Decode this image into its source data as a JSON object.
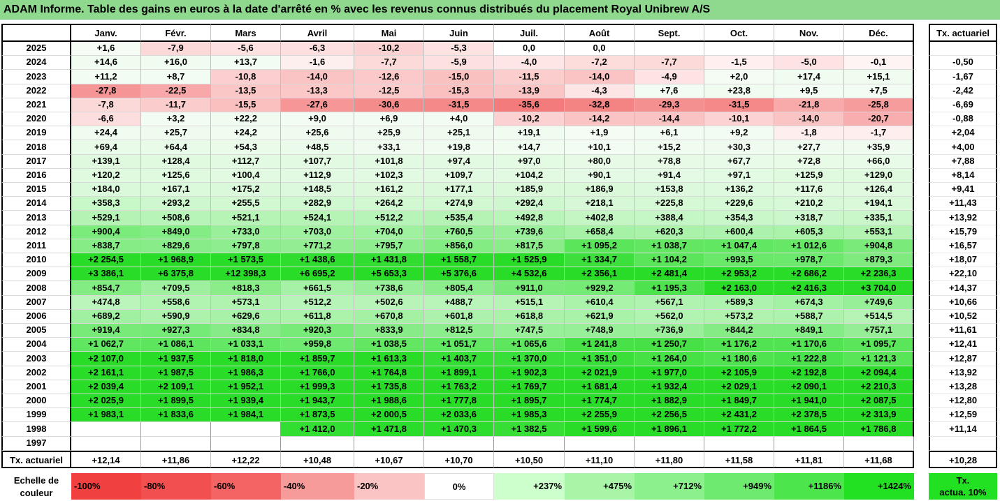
{
  "title": "ADAM Informe. Table des gains en euros à la date d'arrêté en % avec les revenus connus distribués du placement Royal Unibrew A/S",
  "months": [
    "Janv.",
    "Févr.",
    "Mars",
    "Avril",
    "Mai",
    "Juin",
    "Juil.",
    "Août",
    "Sept.",
    "Oct.",
    "Nov.",
    "Déc."
  ],
  "tx_header": "Tx. actuariel",
  "rows": [
    {
      "year": "2025",
      "values": [
        "+1,6",
        "-7,9",
        "-5,6",
        "-6,3",
        "-10,2",
        "-5,3",
        "0,0",
        "0,0",
        "",
        "",
        "",
        ""
      ],
      "tx": ""
    },
    {
      "year": "2024",
      "values": [
        "+14,6",
        "+16,0",
        "+13,7",
        "-1,6",
        "-7,7",
        "-5,9",
        "-4,0",
        "-7,2",
        "-7,7",
        "-1,5",
        "-5,0",
        "-0,1"
      ],
      "tx": "-0,50"
    },
    {
      "year": "2023",
      "values": [
        "+11,2",
        "+8,7",
        "-10,8",
        "-14,0",
        "-12,6",
        "-15,0",
        "-11,5",
        "-14,0",
        "-4,9",
        "+2,0",
        "+17,4",
        "+15,1"
      ],
      "tx": "-1,67"
    },
    {
      "year": "2022",
      "values": [
        "-27,8",
        "-22,5",
        "-13,5",
        "-13,3",
        "-12,5",
        "-15,3",
        "-13,9",
        "-4,3",
        "+7,6",
        "+23,8",
        "+9,5",
        "+7,5"
      ],
      "tx": "-2,42"
    },
    {
      "year": "2021",
      "values": [
        "-7,8",
        "-11,7",
        "-15,5",
        "-27,6",
        "-30,6",
        "-31,5",
        "-35,6",
        "-32,8",
        "-29,3",
        "-31,5",
        "-21,8",
        "-25,8"
      ],
      "tx": "-6,69"
    },
    {
      "year": "2020",
      "values": [
        "-6,6",
        "+3,2",
        "+22,2",
        "+9,0",
        "+6,9",
        "+4,0",
        "-10,2",
        "-14,2",
        "-14,4",
        "-10,1",
        "-14,0",
        "-20,7"
      ],
      "tx": "-0,88"
    },
    {
      "year": "2019",
      "values": [
        "+24,4",
        "+25,7",
        "+24,2",
        "+25,6",
        "+25,9",
        "+25,1",
        "+19,1",
        "+1,9",
        "+6,1",
        "+9,2",
        "-1,8",
        "-1,7"
      ],
      "tx": "+2,04"
    },
    {
      "year": "2018",
      "values": [
        "+69,4",
        "+64,4",
        "+54,3",
        "+48,5",
        "+33,1",
        "+19,8",
        "+14,7",
        "+10,1",
        "+15,2",
        "+30,3",
        "+27,7",
        "+35,9"
      ],
      "tx": "+4,00"
    },
    {
      "year": "2017",
      "values": [
        "+139,1",
        "+128,4",
        "+112,7",
        "+107,7",
        "+101,8",
        "+97,4",
        "+97,0",
        "+80,0",
        "+78,8",
        "+67,7",
        "+72,8",
        "+66,0"
      ],
      "tx": "+7,88"
    },
    {
      "year": "2016",
      "values": [
        "+120,2",
        "+125,6",
        "+100,4",
        "+112,9",
        "+102,3",
        "+109,7",
        "+104,2",
        "+90,1",
        "+91,4",
        "+97,1",
        "+125,9",
        "+129,0"
      ],
      "tx": "+8,14"
    },
    {
      "year": "2015",
      "values": [
        "+184,0",
        "+167,1",
        "+175,2",
        "+148,5",
        "+161,2",
        "+177,1",
        "+185,9",
        "+186,9",
        "+153,8",
        "+136,2",
        "+117,6",
        "+126,4"
      ],
      "tx": "+9,41"
    },
    {
      "year": "2014",
      "values": [
        "+358,3",
        "+293,2",
        "+255,5",
        "+282,9",
        "+264,2",
        "+274,9",
        "+292,4",
        "+218,1",
        "+225,8",
        "+229,6",
        "+210,2",
        "+194,1"
      ],
      "tx": "+11,43"
    },
    {
      "year": "2013",
      "values": [
        "+529,1",
        "+508,6",
        "+521,1",
        "+524,1",
        "+512,2",
        "+535,4",
        "+492,8",
        "+402,8",
        "+388,4",
        "+354,3",
        "+318,7",
        "+335,1"
      ],
      "tx": "+13,92"
    },
    {
      "year": "2012",
      "values": [
        "+900,4",
        "+849,0",
        "+733,0",
        "+703,0",
        "+704,0",
        "+760,5",
        "+739,6",
        "+658,4",
        "+620,3",
        "+600,4",
        "+605,3",
        "+553,1"
      ],
      "tx": "+15,79"
    },
    {
      "year": "2011",
      "values": [
        "+838,7",
        "+829,6",
        "+797,8",
        "+771,2",
        "+795,7",
        "+856,0",
        "+817,5",
        "+1 095,2",
        "+1 038,7",
        "+1 047,4",
        "+1 012,6",
        "+904,8"
      ],
      "tx": "+16,57"
    },
    {
      "year": "2010",
      "values": [
        "+2 254,5",
        "+1 968,9",
        "+1 573,5",
        "+1 438,6",
        "+1 431,8",
        "+1 558,7",
        "+1 525,9",
        "+1 334,7",
        "+1 104,2",
        "+993,5",
        "+978,7",
        "+879,3"
      ],
      "tx": "+18,07"
    },
    {
      "year": "2009",
      "values": [
        "+3 386,1",
        "+6 375,8",
        "+12 398,3",
        "+6 695,2",
        "+5 653,3",
        "+5 376,6",
        "+4 532,6",
        "+2 356,1",
        "+2 481,4",
        "+2 953,2",
        "+2 686,2",
        "+2 236,3"
      ],
      "tx": "+22,10"
    },
    {
      "year": "2008",
      "values": [
        "+854,7",
        "+709,5",
        "+818,3",
        "+661,5",
        "+738,6",
        "+805,4",
        "+911,0",
        "+929,2",
        "+1 195,3",
        "+2 163,0",
        "+2 416,3",
        "+3 704,0"
      ],
      "tx": "+14,37"
    },
    {
      "year": "2007",
      "values": [
        "+474,8",
        "+558,6",
        "+573,1",
        "+512,2",
        "+502,6",
        "+488,7",
        "+515,1",
        "+610,4",
        "+567,1",
        "+589,3",
        "+674,3",
        "+749,6"
      ],
      "tx": "+10,66"
    },
    {
      "year": "2006",
      "values": [
        "+689,2",
        "+590,9",
        "+629,6",
        "+611,8",
        "+670,8",
        "+601,8",
        "+618,8",
        "+621,9",
        "+562,0",
        "+573,2",
        "+588,7",
        "+514,5"
      ],
      "tx": "+10,52"
    },
    {
      "year": "2005",
      "values": [
        "+919,4",
        "+927,3",
        "+834,8",
        "+920,3",
        "+833,9",
        "+812,5",
        "+747,5",
        "+748,9",
        "+736,9",
        "+844,2",
        "+849,1",
        "+757,1"
      ],
      "tx": "+11,61"
    },
    {
      "year": "2004",
      "values": [
        "+1 062,7",
        "+1 086,1",
        "+1 033,1",
        "+959,8",
        "+1 038,5",
        "+1 051,7",
        "+1 065,6",
        "+1 241,8",
        "+1 250,7",
        "+1 176,2",
        "+1 170,6",
        "+1 095,7"
      ],
      "tx": "+12,41"
    },
    {
      "year": "2003",
      "values": [
        "+2 107,0",
        "+1 937,5",
        "+1 818,0",
        "+1 859,7",
        "+1 613,3",
        "+1 403,7",
        "+1 370,0",
        "+1 351,0",
        "+1 264,0",
        "+1 180,6",
        "+1 222,8",
        "+1 121,3"
      ],
      "tx": "+12,87"
    },
    {
      "year": "2002",
      "values": [
        "+2 161,1",
        "+1 987,5",
        "+1 986,3",
        "+1 766,0",
        "+1 764,8",
        "+1 899,1",
        "+1 902,3",
        "+2 021,9",
        "+1 977,0",
        "+2 105,9",
        "+2 192,8",
        "+2 094,4"
      ],
      "tx": "+13,92"
    },
    {
      "year": "2001",
      "values": [
        "+2 039,4",
        "+2 109,1",
        "+1 952,1",
        "+1 999,3",
        "+1 735,8",
        "+1 763,2",
        "+1 769,7",
        "+1 681,4",
        "+1 932,4",
        "+2 029,1",
        "+2 090,1",
        "+2 210,3"
      ],
      "tx": "+13,28"
    },
    {
      "year": "2000",
      "values": [
        "+2 025,9",
        "+1 899,5",
        "+1 939,4",
        "+1 943,7",
        "+1 988,6",
        "+1 777,8",
        "+1 895,7",
        "+1 774,7",
        "+1 882,9",
        "+1 849,7",
        "+1 941,0",
        "+2 087,5"
      ],
      "tx": "+12,80"
    },
    {
      "year": "1999",
      "values": [
        "+1 983,1",
        "+1 833,6",
        "+1 984,1",
        "+1 873,5",
        "+2 000,5",
        "+2 033,6",
        "+1 985,3",
        "+2 255,9",
        "+2 256,5",
        "+2 431,2",
        "+2 378,5",
        "+2 313,9"
      ],
      "tx": "+12,59"
    },
    {
      "year": "1998",
      "values": [
        "",
        "",
        "",
        "+1 412,0",
        "+1 471,8",
        "+1 470,3",
        "+1 382,5",
        "+1 599,6",
        "+1 896,1",
        "+1 772,2",
        "+1 864,5",
        "+1 786,8"
      ],
      "tx": "+11,14"
    },
    {
      "year": "1997",
      "values": [
        "",
        "",
        "",
        "",
        "",
        "",
        "",
        "",
        "",
        "",
        "",
        ""
      ],
      "tx": ""
    }
  ],
  "footer": {
    "label": "Tx. actuariel",
    "values": [
      "+12,14",
      "+11,86",
      "+12,22",
      "+10,48",
      "+10,67",
      "+10,70",
      "+10,50",
      "+11,10",
      "+11,80",
      "+11,58",
      "+11,81",
      "+11,68"
    ],
    "tx": "+10,28"
  },
  "legend": {
    "label_line1": "Echelle de",
    "label_line2": "couleur",
    "items": [
      {
        "text": "-100%",
        "color": "#F04040",
        "align": "left"
      },
      {
        "text": "-80%",
        "color": "#F25050",
        "align": "left"
      },
      {
        "text": "-60%",
        "color": "#F46464",
        "align": "left"
      },
      {
        "text": "-40%",
        "color": "#F79A9A",
        "align": "left"
      },
      {
        "text": "-20%",
        "color": "#FAC4C4",
        "align": "left"
      },
      {
        "text": "0%",
        "color": "#FFFFFF",
        "align": "center"
      },
      {
        "text": "+237%",
        "color": "#CCFFCC",
        "align": "right"
      },
      {
        "text": "+475%",
        "color": "#A8F5A8",
        "align": "right"
      },
      {
        "text": "+712%",
        "color": "#8CF08C",
        "align": "right"
      },
      {
        "text": "+949%",
        "color": "#6EEB6E",
        "align": "right"
      },
      {
        "text": "+1186%",
        "color": "#4CE64C",
        "align": "right"
      },
      {
        "text": "+1424%",
        "color": "#22E022",
        "align": "right"
      }
    ],
    "tx_line1": "Tx.",
    "tx_line2": "actua. 10%",
    "tx_color": "#22E022"
  }
}
